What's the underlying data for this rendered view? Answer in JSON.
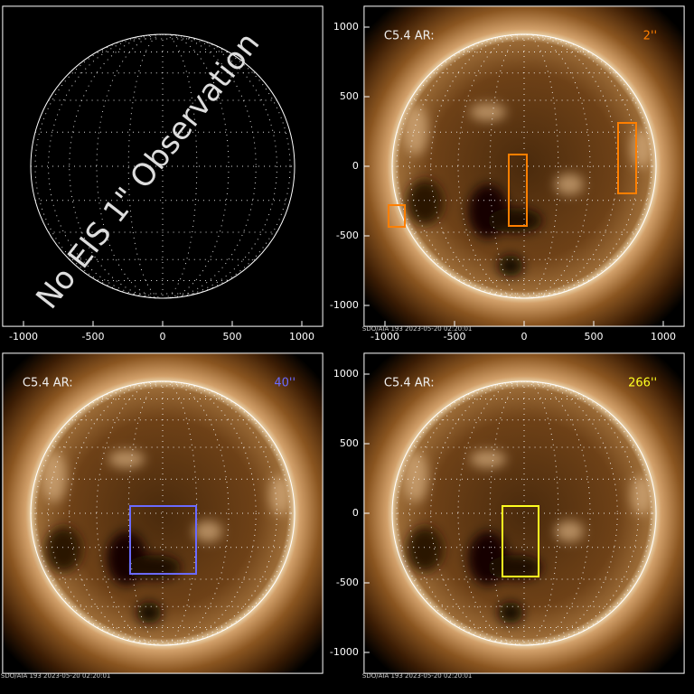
{
  "panels": [
    {
      "overlay_text": "No EIS 1\" Observation",
      "x_ticks": [
        -1000,
        -500,
        0,
        500,
        1000
      ]
    },
    {
      "label": "C5.4 AR:",
      "slit": "2''",
      "x_ticks": [
        -1000,
        -500,
        0,
        500,
        1000
      ],
      "y_ticks": [
        1000,
        500,
        0,
        -500,
        -1000
      ],
      "footer": "SDO/AIA 193 2023-05-20 02:20:01"
    },
    {
      "label": "C5.4 AR:",
      "slit": "40''",
      "footer": "SDO/AIA 193 2023-05-20 02:20:01"
    },
    {
      "label": "C5.4 AR:",
      "slit": "266''",
      "y_ticks": [
        1000,
        500,
        0,
        -500,
        -1000
      ],
      "footer": "SDO/AIA 193 2023-05-20 02:20:01"
    }
  ]
}
